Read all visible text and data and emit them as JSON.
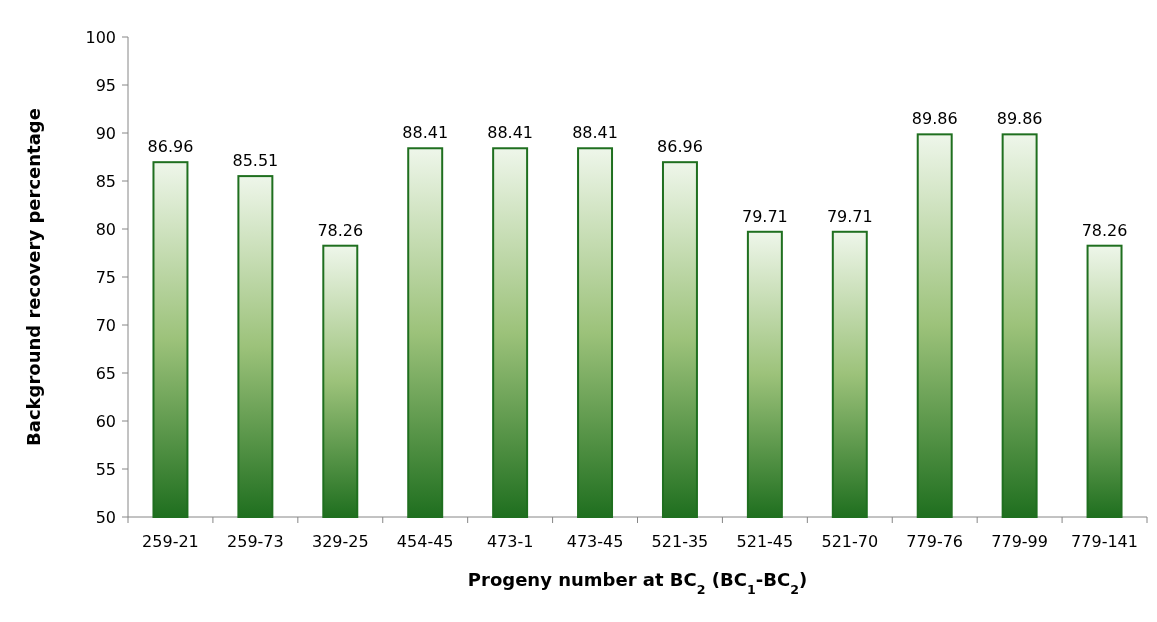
{
  "chart_data": {
    "type": "bar",
    "categories": [
      "259-21",
      "259-73",
      "329-25",
      "454-45",
      "473-1",
      "473-45",
      "521-35",
      "521-45",
      "521-70",
      "779-76",
      "779-99",
      "779-141"
    ],
    "values": [
      86.96,
      85.51,
      78.26,
      88.41,
      88.41,
      88.41,
      86.96,
      79.71,
      79.71,
      89.86,
      89.86,
      78.26
    ],
    "color": "#1f6f1f",
    "ylim": [
      50,
      100
    ],
    "yticks": [
      50,
      55,
      60,
      65,
      70,
      75,
      80,
      85,
      90,
      95,
      100
    ],
    "data_labels": true,
    "xlabel": "Progeny number at BC$_{2}$ (BC$_{1}$-BC$_{2}$)",
    "ylabel": "Background recovery percentage"
  }
}
